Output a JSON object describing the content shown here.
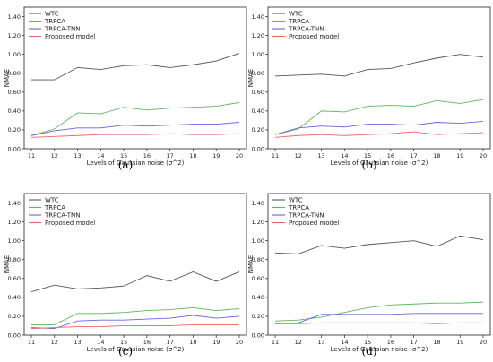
{
  "figure": {
    "captions": [
      "(a)",
      "(b)",
      "(c)",
      "(d)"
    ]
  },
  "chart_data": [
    {
      "type": "line",
      "caption": "(a)",
      "xlabel": "Levels of Gaussian noise (σ^2)",
      "ylabel": "NMAE",
      "x": [
        11,
        12,
        13,
        14,
        15,
        16,
        17,
        18,
        19,
        20
      ],
      "ylim": [
        0.0,
        1.5
      ],
      "yticks": [
        "0.00",
        "0.20",
        "0.40",
        "0.60",
        "0.80",
        "1.00",
        "1.20",
        "1.40"
      ],
      "legend_position": "top-left",
      "grid": false,
      "series": [
        {
          "name": "WTC",
          "color": "#555555",
          "values": [
            0.73,
            0.73,
            0.86,
            0.84,
            0.88,
            0.89,
            0.86,
            0.89,
            0.93,
            1.01
          ]
        },
        {
          "name": "TRPCA",
          "color": "#5cb85c",
          "values": [
            0.14,
            0.21,
            0.38,
            0.37,
            0.44,
            0.41,
            0.43,
            0.44,
            0.45,
            0.49
          ]
        },
        {
          "name": "TRPCA-TNN",
          "color": "#6666dd",
          "values": [
            0.14,
            0.19,
            0.22,
            0.22,
            0.25,
            0.24,
            0.25,
            0.26,
            0.26,
            0.28
          ]
        },
        {
          "name": "Proposed model",
          "color": "#ee6666",
          "values": [
            0.12,
            0.13,
            0.14,
            0.15,
            0.15,
            0.15,
            0.16,
            0.15,
            0.15,
            0.16
          ]
        }
      ]
    },
    {
      "type": "line",
      "caption": "(b)",
      "xlabel": "Levels of Gaussian noise (σ^2)",
      "ylabel": "NMAE",
      "x": [
        11,
        12,
        13,
        14,
        15,
        16,
        17,
        18,
        19,
        20
      ],
      "ylim": [
        0.0,
        1.5
      ],
      "yticks": [
        "0.00",
        "0.20",
        "0.40",
        "0.60",
        "0.80",
        "1.00",
        "1.20",
        "1.40"
      ],
      "legend_position": "top-left",
      "grid": false,
      "series": [
        {
          "name": "WTC",
          "color": "#555555",
          "values": [
            0.77,
            0.78,
            0.79,
            0.77,
            0.84,
            0.85,
            0.91,
            0.96,
            1.0,
            0.97
          ]
        },
        {
          "name": "TRPCA",
          "color": "#5cb85c",
          "values": [
            0.15,
            0.21,
            0.4,
            0.39,
            0.45,
            0.46,
            0.45,
            0.51,
            0.48,
            0.52
          ]
        },
        {
          "name": "TRPCA-TNN",
          "color": "#6666dd",
          "values": [
            0.15,
            0.22,
            0.24,
            0.23,
            0.26,
            0.26,
            0.25,
            0.28,
            0.27,
            0.29
          ]
        },
        {
          "name": "Proposed model",
          "color": "#ee6666",
          "values": [
            0.12,
            0.14,
            0.15,
            0.14,
            0.15,
            0.16,
            0.18,
            0.15,
            0.16,
            0.17
          ]
        }
      ]
    },
    {
      "type": "line",
      "caption": "(c)",
      "xlabel": "Levels of Gaussian noise (σ^2)",
      "ylabel": "NMAE",
      "x": [
        11,
        12,
        13,
        14,
        15,
        16,
        17,
        18,
        19,
        20
      ],
      "ylim": [
        0.0,
        1.5
      ],
      "yticks": [
        "0.00",
        "0.20",
        "0.40",
        "0.60",
        "0.80",
        "1.00",
        "1.20",
        "1.40"
      ],
      "legend_position": "top-left",
      "grid": false,
      "series": [
        {
          "name": "WTC",
          "color": "#555555",
          "values": [
            0.46,
            0.53,
            0.49,
            0.5,
            0.52,
            0.63,
            0.57,
            0.67,
            0.57,
            0.67
          ]
        },
        {
          "name": "TRPCA",
          "color": "#5cb85c",
          "values": [
            0.11,
            0.11,
            0.23,
            0.23,
            0.24,
            0.26,
            0.27,
            0.29,
            0.26,
            0.28
          ]
        },
        {
          "name": "TRPCA-TNN",
          "color": "#6666dd",
          "values": [
            0.08,
            0.07,
            0.15,
            0.16,
            0.16,
            0.17,
            0.18,
            0.21,
            0.18,
            0.2
          ]
        },
        {
          "name": "Proposed model",
          "color": "#ee6666",
          "values": [
            0.07,
            0.08,
            0.09,
            0.09,
            0.1,
            0.1,
            0.1,
            0.11,
            0.11,
            0.11
          ]
        }
      ]
    },
    {
      "type": "line",
      "caption": "(d)",
      "xlabel": "Levels of Gaussian noise (σ^2)",
      "ylabel": "NMAE",
      "x": [
        11,
        12,
        13,
        14,
        15,
        16,
        17,
        18,
        19,
        20
      ],
      "ylim": [
        0.0,
        1.5
      ],
      "yticks": [
        "0.00",
        "0.20",
        "0.40",
        "0.60",
        "0.80",
        "1.00",
        "1.20",
        "1.40"
      ],
      "legend_position": "top-left",
      "grid": false,
      "series": [
        {
          "name": "WTC",
          "color": "#555555",
          "values": [
            0.87,
            0.86,
            0.95,
            0.92,
            0.96,
            0.98,
            1.0,
            0.94,
            1.05,
            1.01
          ]
        },
        {
          "name": "TRPCA",
          "color": "#5cb85c",
          "values": [
            0.15,
            0.16,
            0.19,
            0.24,
            0.29,
            0.32,
            0.33,
            0.34,
            0.34,
            0.35
          ]
        },
        {
          "name": "TRPCA-TNN",
          "color": "#6666dd",
          "values": [
            0.12,
            0.13,
            0.22,
            0.22,
            0.22,
            0.22,
            0.23,
            0.23,
            0.23,
            0.23
          ]
        },
        {
          "name": "Proposed model",
          "color": "#ee6666",
          "values": [
            0.12,
            0.12,
            0.13,
            0.13,
            0.13,
            0.13,
            0.13,
            0.12,
            0.13,
            0.13
          ]
        }
      ]
    }
  ]
}
